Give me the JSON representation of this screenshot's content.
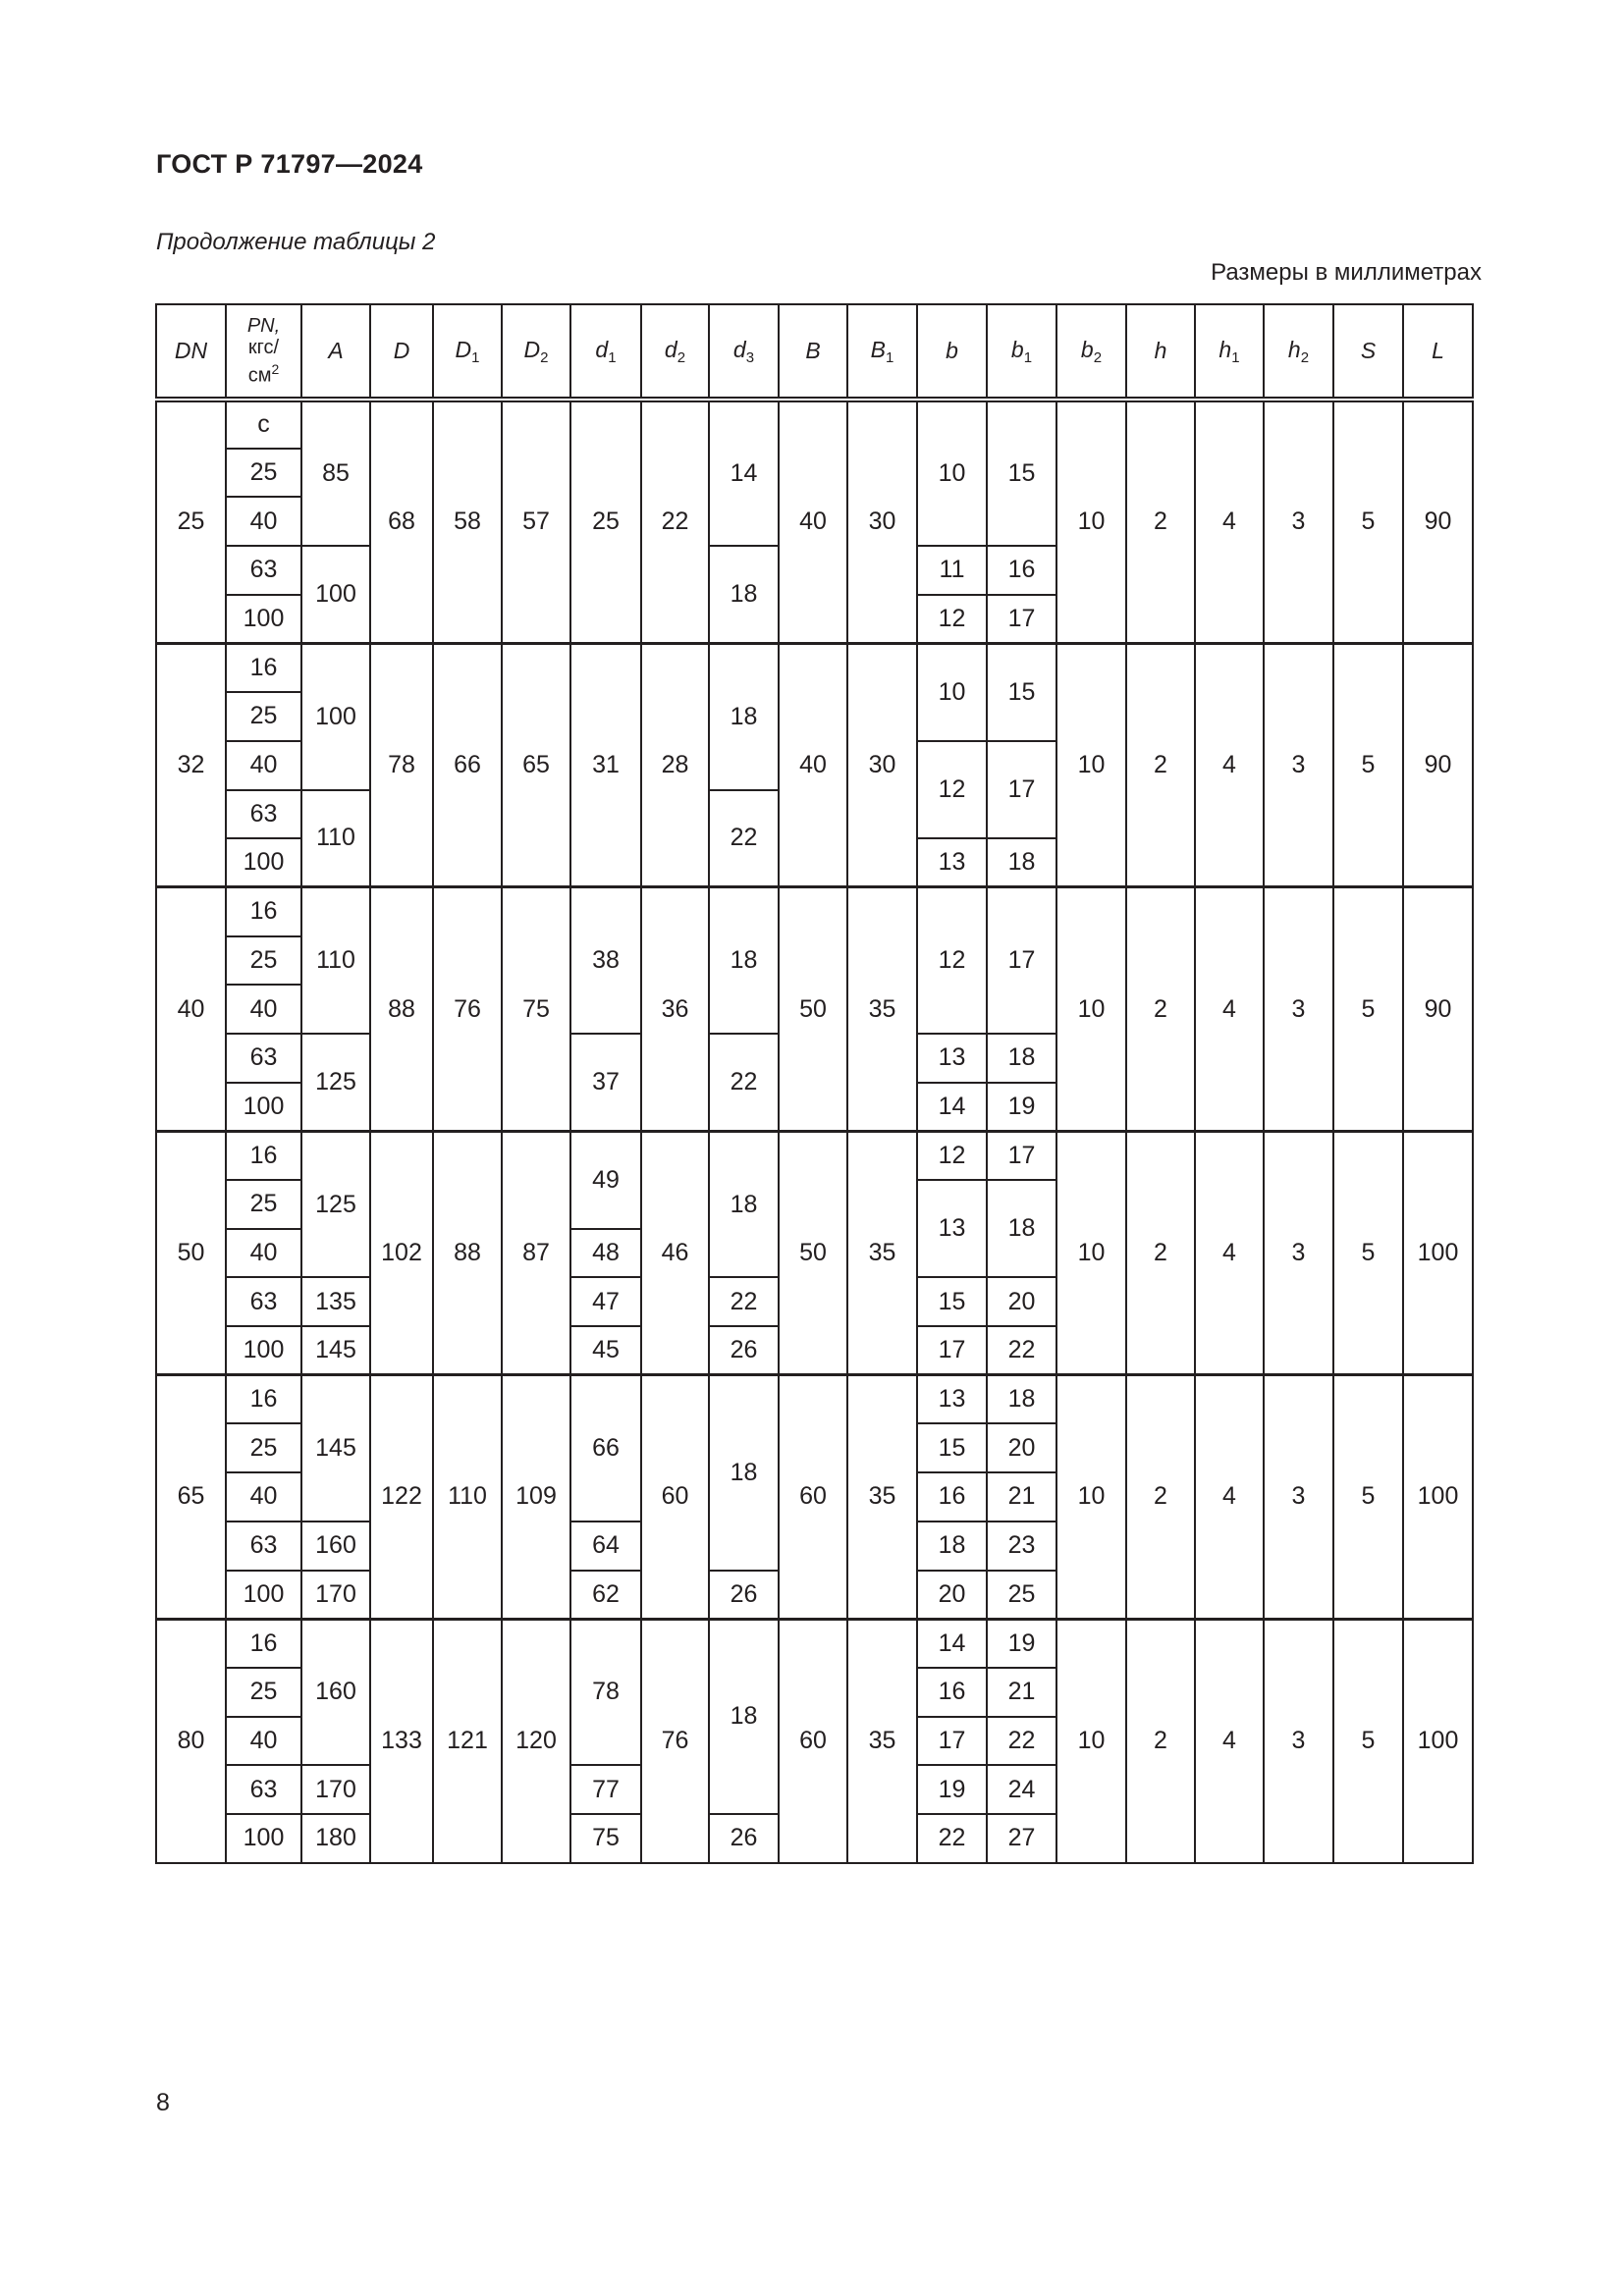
{
  "header": {
    "doc_code": "ГОСТ Р 71797—2024",
    "continuation": "Продолжение таблицы 2",
    "units": "Размеры в миллиметрах"
  },
  "table": {
    "columns": [
      {
        "main": "DN",
        "sub": ""
      },
      {
        "main": "PN,",
        "lines": [
          "PN,",
          "кгс/",
          "см"
        ],
        "sup": "2"
      },
      {
        "main": "A",
        "sub": ""
      },
      {
        "main": "D",
        "sub": ""
      },
      {
        "main": "D",
        "sub": "1"
      },
      {
        "main": "D",
        "sub": "2"
      },
      {
        "main": "d",
        "sub": "1"
      },
      {
        "main": "d",
        "sub": "2"
      },
      {
        "main": "d",
        "sub": "3"
      },
      {
        "main": "B",
        "sub": ""
      },
      {
        "main": "B",
        "sub": "1"
      },
      {
        "main": "b",
        "sub": ""
      },
      {
        "main": "b",
        "sub": "1"
      },
      {
        "main": "b",
        "sub": "2"
      },
      {
        "main": "h",
        "sub": ""
      },
      {
        "main": "h",
        "sub": "1"
      },
      {
        "main": "h",
        "sub": "2"
      },
      {
        "main": "S",
        "sub": ""
      },
      {
        "main": "L",
        "sub": ""
      }
    ],
    "groups": [
      {
        "DN": "25",
        "PN": [
          "с",
          "25",
          "40",
          "63",
          "100"
        ],
        "A": [
          [
            "85",
            3
          ],
          [
            "100",
            2
          ]
        ],
        "D": "68",
        "D1": "58",
        "D2": "57",
        "d1": [
          [
            "25",
            5
          ]
        ],
        "d2": "22",
        "d3": [
          [
            "14",
            3
          ],
          [
            "18",
            2
          ]
        ],
        "B": "40",
        "B1": "30",
        "b": [
          [
            "10",
            3
          ],
          [
            "11",
            1
          ],
          [
            "12",
            1
          ]
        ],
        "b1": [
          [
            "15",
            3
          ],
          [
            "16",
            1
          ],
          [
            "17",
            1
          ]
        ],
        "b2": "10",
        "h": "2",
        "h1": "4",
        "h2": "3",
        "S": "5",
        "L": "90"
      },
      {
        "DN": "32",
        "PN": [
          "16",
          "25",
          "40",
          "63",
          "100"
        ],
        "A": [
          [
            "100",
            3
          ],
          [
            "110",
            2
          ]
        ],
        "D": "78",
        "D1": "66",
        "D2": "65",
        "d1": [
          [
            "31",
            5
          ]
        ],
        "d2": "28",
        "d3": [
          [
            "18",
            3
          ],
          [
            "22",
            2
          ]
        ],
        "B": "40",
        "B1": "30",
        "b": [
          [
            "10",
            2
          ],
          [
            "12",
            2
          ],
          [
            "13",
            1
          ]
        ],
        "b1": [
          [
            "15",
            2
          ],
          [
            "17",
            2
          ],
          [
            "18",
            1
          ]
        ],
        "b2": "10",
        "h": "2",
        "h1": "4",
        "h2": "3",
        "S": "5",
        "L": "90"
      },
      {
        "DN": "40",
        "PN": [
          "16",
          "25",
          "40",
          "63",
          "100"
        ],
        "A": [
          [
            "110",
            3
          ],
          [
            "125",
            2
          ]
        ],
        "D": "88",
        "D1": "76",
        "D2": "75",
        "d1": [
          [
            "38",
            3
          ],
          [
            "37",
            2
          ]
        ],
        "d2": "36",
        "d3": [
          [
            "18",
            3
          ],
          [
            "22",
            2
          ]
        ],
        "B": "50",
        "B1": "35",
        "b": [
          [
            "12",
            3
          ],
          [
            "13",
            1
          ],
          [
            "14",
            1
          ]
        ],
        "b1": [
          [
            "17",
            3
          ],
          [
            "18",
            1
          ],
          [
            "19",
            1
          ]
        ],
        "b2": "10",
        "h": "2",
        "h1": "4",
        "h2": "3",
        "S": "5",
        "L": "90"
      },
      {
        "DN": "50",
        "PN": [
          "16",
          "25",
          "40",
          "63",
          "100"
        ],
        "A": [
          [
            "125",
            3
          ],
          [
            "135",
            1
          ],
          [
            "145",
            1
          ]
        ],
        "D": "102",
        "D1": "88",
        "D2": "87",
        "d1": [
          [
            "49",
            2
          ],
          [
            "48",
            1
          ],
          [
            "47",
            1
          ],
          [
            "45",
            1
          ]
        ],
        "d2": "46",
        "d3": [
          [
            "18",
            3
          ],
          [
            "22",
            1
          ],
          [
            "26",
            1
          ]
        ],
        "B": "50",
        "B1": "35",
        "b": [
          [
            "12",
            1
          ],
          [
            "13",
            2
          ],
          [
            "15",
            1
          ],
          [
            "17",
            1
          ]
        ],
        "b1": [
          [
            "17",
            1
          ],
          [
            "18",
            2
          ],
          [
            "20",
            1
          ],
          [
            "22",
            1
          ]
        ],
        "b2": "10",
        "h": "2",
        "h1": "4",
        "h2": "3",
        "S": "5",
        "L": "100"
      },
      {
        "DN": "65",
        "PN": [
          "16",
          "25",
          "40",
          "63",
          "100"
        ],
        "A": [
          [
            "145",
            3
          ],
          [
            "160",
            1
          ],
          [
            "170",
            1
          ]
        ],
        "D": "122",
        "D1": "110",
        "D2": "109",
        "d1": [
          [
            "66",
            3
          ],
          [
            "64",
            1
          ],
          [
            "62",
            1
          ]
        ],
        "d2": "60",
        "d3": [
          [
            "18",
            4
          ],
          [
            "26",
            1
          ]
        ],
        "B": "60",
        "B1": "35",
        "b": [
          [
            "13",
            1
          ],
          [
            "15",
            1
          ],
          [
            "16",
            1
          ],
          [
            "18",
            1
          ],
          [
            "20",
            1
          ]
        ],
        "b1": [
          [
            "18",
            1
          ],
          [
            "20",
            1
          ],
          [
            "21",
            1
          ],
          [
            "23",
            1
          ],
          [
            "25",
            1
          ]
        ],
        "b2": "10",
        "h": "2",
        "h1": "4",
        "h2": "3",
        "S": "5",
        "L": "100"
      },
      {
        "DN": "80",
        "PN": [
          "16",
          "25",
          "40",
          "63",
          "100"
        ],
        "A": [
          [
            "160",
            3
          ],
          [
            "170",
            1
          ],
          [
            "180",
            1
          ]
        ],
        "D": "133",
        "D1": "121",
        "D2": "120",
        "d1": [
          [
            "78",
            3
          ],
          [
            "77",
            1
          ],
          [
            "75",
            1
          ]
        ],
        "d2": "76",
        "d3": [
          [
            "18",
            4
          ],
          [
            "26",
            1
          ]
        ],
        "B": "60",
        "B1": "35",
        "b": [
          [
            "14",
            1
          ],
          [
            "16",
            1
          ],
          [
            "17",
            1
          ],
          [
            "19",
            1
          ],
          [
            "22",
            1
          ]
        ],
        "b1": [
          [
            "19",
            1
          ],
          [
            "21",
            1
          ],
          [
            "22",
            1
          ],
          [
            "24",
            1
          ],
          [
            "27",
            1
          ]
        ],
        "b2": "10",
        "h": "2",
        "h1": "4",
        "h2": "3",
        "S": "5",
        "L": "100"
      }
    ]
  },
  "footer": {
    "page_number": "8"
  }
}
